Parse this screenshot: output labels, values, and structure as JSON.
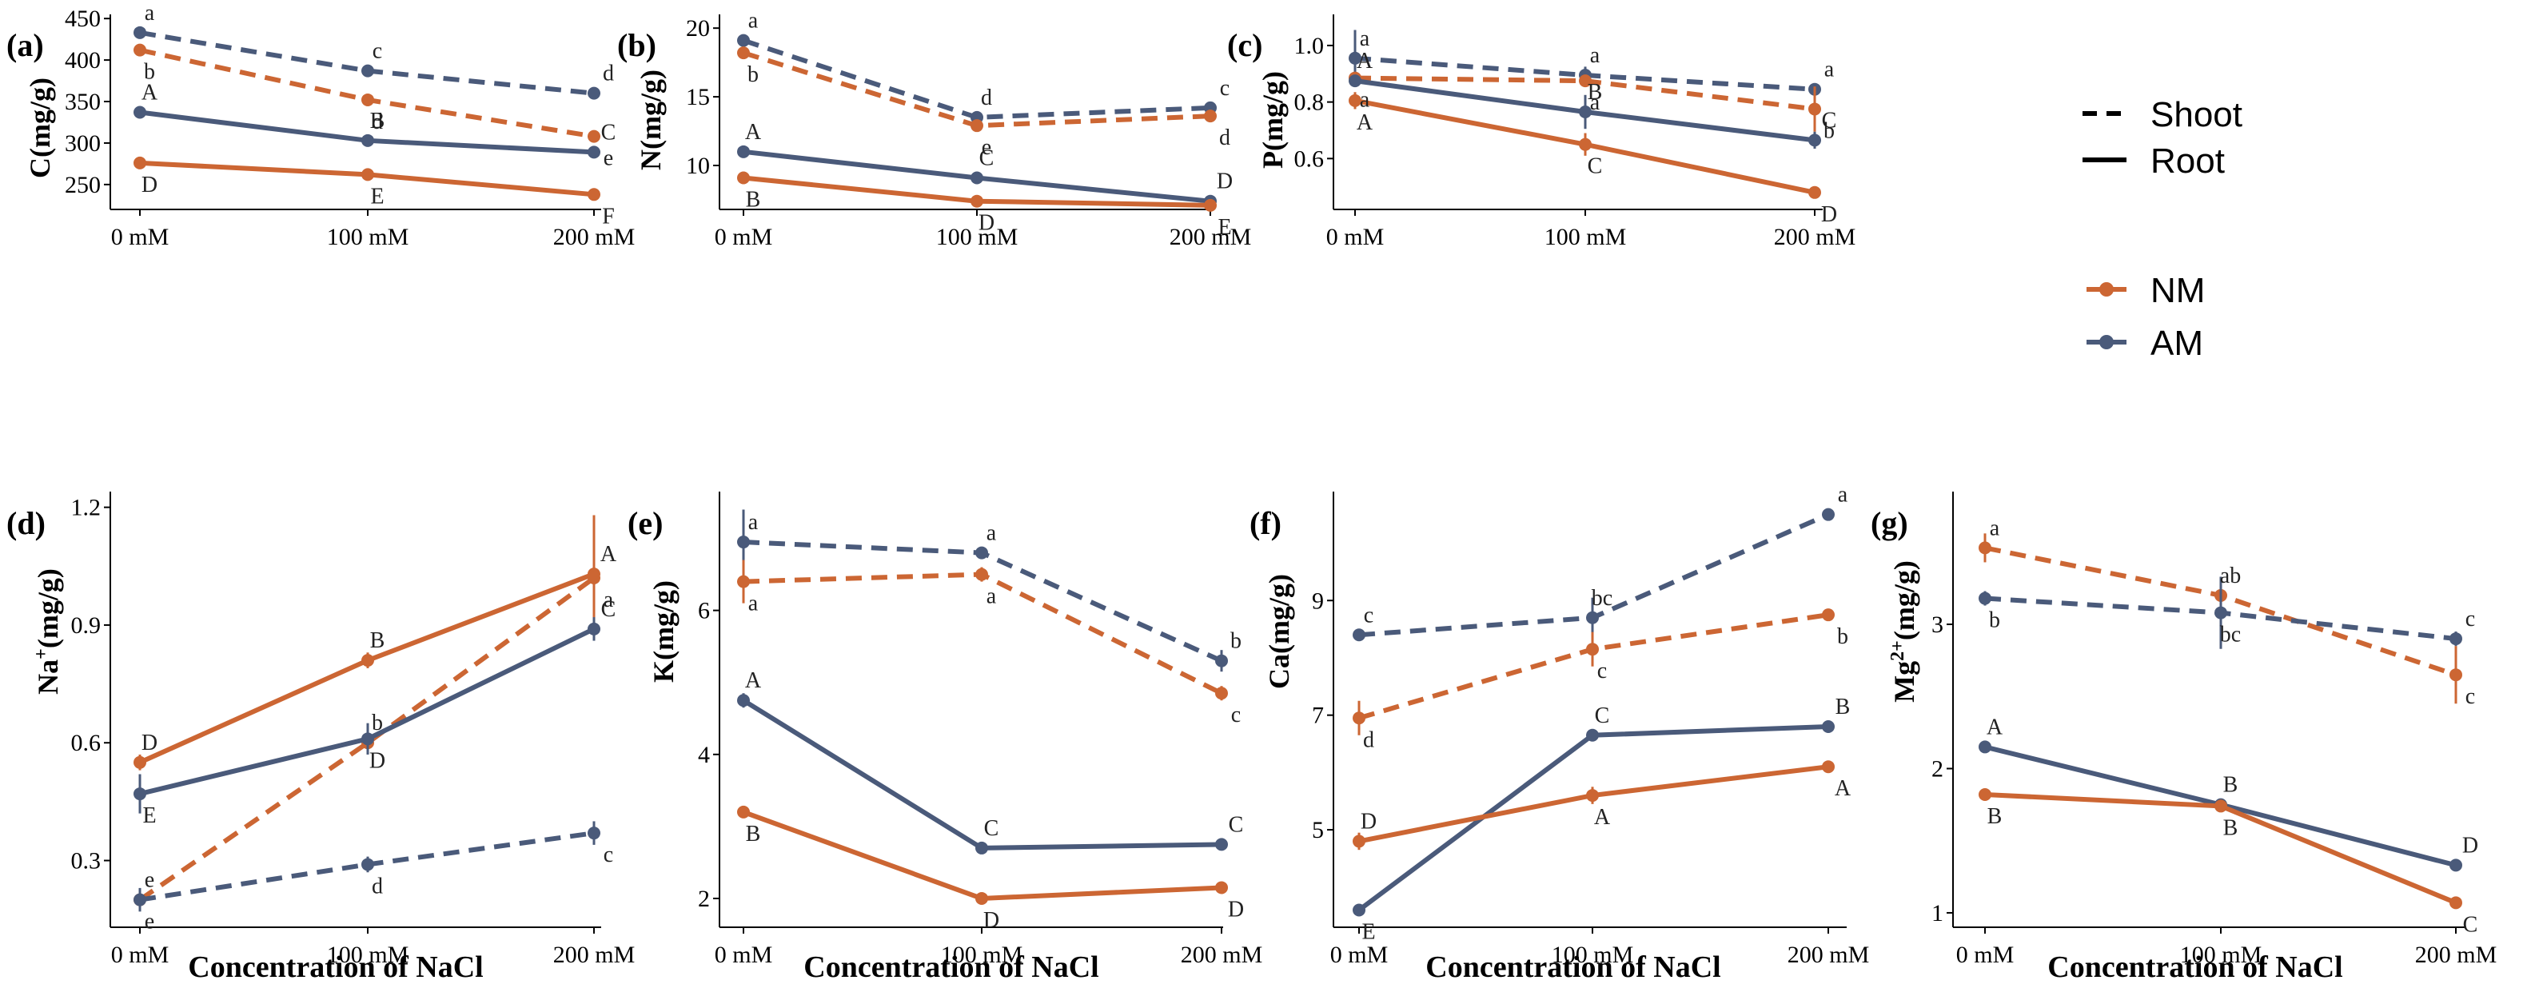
{
  "legend": {
    "line_types": [
      {
        "label": "Shoot",
        "style": "dashed"
      },
      {
        "label": "Root",
        "style": "solid"
      }
    ],
    "groups": [
      {
        "label": "NM",
        "color": "#cc6633"
      },
      {
        "label": "AM",
        "color": "#4a5a7a"
      }
    ]
  },
  "x_title": "Concentration of NaCl",
  "chart_data": [
    {
      "type": "line",
      "panel": "(a)",
      "ylabel": "C(mg/g)",
      "ylabel_sup": "",
      "ylabel_suffix": "",
      "categories": [
        "0 mM",
        "100 mM",
        "200 mM"
      ],
      "ylim": [
        220,
        455
      ],
      "yticks": [
        250,
        300,
        350,
        400,
        450
      ],
      "ytick_labels": [
        "250",
        "300",
        "350",
        "400",
        "450"
      ],
      "series": [
        {
          "name": "AM Shoot",
          "group": "AM",
          "part": "Shoot",
          "values": [
            433,
            387,
            360
          ],
          "errors": [
            4,
            3,
            5
          ],
          "letters": [
            "a",
            "c",
            "d"
          ]
        },
        {
          "name": "NM Shoot",
          "group": "NM",
          "part": "Shoot",
          "values": [
            412,
            352,
            308
          ],
          "errors": [
            4,
            4,
            3
          ],
          "letters": [
            "b",
            "d",
            "e"
          ]
        },
        {
          "name": "AM Root",
          "group": "AM",
          "part": "Root",
          "values": [
            337,
            303,
            289
          ],
          "errors": [
            2,
            2,
            3
          ],
          "letters": [
            "A",
            "B",
            "C"
          ]
        },
        {
          "name": "NM Root",
          "group": "NM",
          "part": "Root",
          "values": [
            276,
            262,
            238
          ],
          "errors": [
            2,
            3,
            2
          ],
          "letters": [
            "D",
            "E",
            "F"
          ]
        }
      ]
    },
    {
      "type": "line",
      "panel": "(b)",
      "ylabel": "N(mg/g)",
      "ylabel_sup": "",
      "ylabel_suffix": "",
      "categories": [
        "0 mM",
        "100 mM",
        "200 mM"
      ],
      "ylim": [
        6.8,
        21
      ],
      "yticks": [
        10,
        15,
        20
      ],
      "ytick_labels": [
        "10",
        "15",
        "20"
      ],
      "series": [
        {
          "name": "AM Shoot",
          "group": "AM",
          "part": "Shoot",
          "values": [
            19.1,
            13.5,
            14.2
          ],
          "errors": [
            0.3,
            0.3,
            0.2
          ],
          "letters": [
            "a",
            "d",
            "c"
          ]
        },
        {
          "name": "NM Shoot",
          "group": "NM",
          "part": "Shoot",
          "values": [
            18.2,
            12.9,
            13.6
          ],
          "errors": [
            0.3,
            0.2,
            0.2
          ],
          "letters": [
            "b",
            "e",
            "d"
          ]
        },
        {
          "name": "AM Root",
          "group": "AM",
          "part": "Root",
          "values": [
            11.0,
            9.1,
            7.4
          ],
          "errors": [
            0.2,
            0.2,
            0.2
          ],
          "letters": [
            "A",
            "C",
            "D"
          ]
        },
        {
          "name": "NM Root",
          "group": "NM",
          "part": "Root",
          "values": [
            9.1,
            7.4,
            7.1
          ],
          "errors": [
            0.2,
            0.2,
            0.2
          ],
          "letters": [
            "B",
            "D",
            "E"
          ]
        }
      ]
    },
    {
      "type": "line",
      "panel": "(c)",
      "ylabel": "P(mg/g)",
      "ylabel_sup": "",
      "ylabel_suffix": "",
      "categories": [
        "0 mM",
        "100 mM",
        "200 mM"
      ],
      "ylim": [
        0.42,
        1.11
      ],
      "yticks": [
        0.6,
        0.8,
        1.0
      ],
      "ytick_labels": [
        "0.6",
        "0.8",
        "1.0"
      ],
      "series": [
        {
          "name": "AM Shoot",
          "group": "AM",
          "part": "Shoot",
          "values": [
            0.955,
            0.895,
            0.845
          ],
          "errors": [
            0.1,
            0.03,
            0.02
          ],
          "letters": [
            "a",
            "a",
            "a"
          ]
        },
        {
          "name": "NM Shoot",
          "group": "NM",
          "part": "Shoot",
          "values": [
            0.885,
            0.875,
            0.775
          ],
          "errors": [
            0.02,
            0.02,
            0.08
          ],
          "letters": [
            "a",
            "a",
            "b"
          ]
        },
        {
          "name": "AM Root",
          "group": "AM",
          "part": "Root",
          "values": [
            0.875,
            0.765,
            0.665
          ],
          "errors": [
            0.02,
            0.06,
            0.03
          ],
          "letters": [
            "A",
            "B",
            "C"
          ]
        },
        {
          "name": "NM Root",
          "group": "NM",
          "part": "Root",
          "values": [
            0.805,
            0.65,
            0.48
          ],
          "errors": [
            0.03,
            0.04,
            0.02
          ],
          "letters": [
            "A",
            "C",
            "D"
          ]
        }
      ]
    },
    {
      "type": "line",
      "panel": "(d)",
      "ylabel": "Na",
      "ylabel_sup": "+",
      "ylabel_suffix": "(mg/g)",
      "categories": [
        "0 mM",
        "100 mM",
        "200 mM"
      ],
      "ylim": [
        0.13,
        1.24
      ],
      "yticks": [
        0.3,
        0.6,
        0.9,
        1.2
      ],
      "ytick_labels": [
        "0.3",
        "0.6",
        "0.9",
        "1.2"
      ],
      "series": [
        {
          "name": "NM Root",
          "group": "NM",
          "part": "Root",
          "values": [
            0.55,
            0.81,
            1.03
          ],
          "errors": [
            0.02,
            0.02,
            0.15
          ],
          "letters": [
            "D",
            "B",
            "A"
          ]
        },
        {
          "name": "NM Shoot",
          "group": "NM",
          "part": "Shoot",
          "values": [
            0.2,
            0.6,
            1.02
          ],
          "errors": [
            0.01,
            0.02,
            0.03
          ],
          "letters": [
            "e",
            "b",
            "a"
          ]
        },
        {
          "name": "AM Root",
          "group": "AM",
          "part": "Root",
          "values": [
            0.47,
            0.61,
            0.89
          ],
          "errors": [
            0.05,
            0.04,
            0.03
          ],
          "letters": [
            "E",
            "D",
            "C"
          ]
        },
        {
          "name": "AM Shoot",
          "group": "AM",
          "part": "Shoot",
          "values": [
            0.2,
            0.29,
            0.37
          ],
          "errors": [
            0.03,
            0.02,
            0.03
          ],
          "letters": [
            "e",
            "d",
            "c"
          ]
        }
      ]
    },
    {
      "type": "line",
      "panel": "(e)",
      "ylabel": "K(mg/g)",
      "ylabel_sup": "",
      "ylabel_suffix": "",
      "categories": [
        "0 mM",
        "100 mM",
        "200 mM"
      ],
      "ylim": [
        1.6,
        7.65
      ],
      "yticks": [
        2,
        4,
        6
      ],
      "ytick_labels": [
        "2",
        "4",
        "6"
      ],
      "series": [
        {
          "name": "AM Shoot",
          "group": "AM",
          "part": "Shoot",
          "values": [
            6.95,
            6.8,
            5.3
          ],
          "errors": [
            0.45,
            0.05,
            0.15
          ],
          "letters": [
            "a",
            "a",
            "b"
          ]
        },
        {
          "name": "NM Shoot",
          "group": "NM",
          "part": "Shoot",
          "values": [
            6.4,
            6.5,
            4.85
          ],
          "errors": [
            0.3,
            0.1,
            0.1
          ],
          "letters": [
            "a",
            "a",
            "c"
          ]
        },
        {
          "name": "AM Root",
          "group": "AM",
          "part": "Root",
          "values": [
            4.75,
            2.7,
            2.75
          ],
          "errors": [
            0.1,
            0.05,
            0.05
          ],
          "letters": [
            "A",
            "C",
            "C"
          ]
        },
        {
          "name": "NM Root",
          "group": "NM",
          "part": "Root",
          "values": [
            3.2,
            2.0,
            2.15
          ],
          "errors": [
            0.05,
            0.05,
            0.05
          ],
          "letters": [
            "B",
            "D",
            "D"
          ]
        }
      ]
    },
    {
      "type": "line",
      "panel": "(f)",
      "ylabel": "Ca(mg/g)",
      "ylabel_sup": "",
      "ylabel_suffix": "",
      "categories": [
        "0 mM",
        "100 mM",
        "200 mM"
      ],
      "ylim": [
        3.3,
        10.9
      ],
      "yticks": [
        5,
        7,
        9
      ],
      "ytick_labels": [
        "5",
        "7",
        "9"
      ],
      "series": [
        {
          "name": "AM Shoot",
          "group": "AM",
          "part": "Shoot",
          "values": [
            8.4,
            8.7,
            10.5
          ],
          "errors": [
            0.05,
            0.35,
            0.05
          ],
          "letters": [
            "c",
            "bc",
            "a"
          ]
        },
        {
          "name": "NM Shoot",
          "group": "NM",
          "part": "Shoot",
          "values": [
            6.95,
            8.15,
            8.75
          ],
          "errors": [
            0.3,
            0.3,
            0.05
          ],
          "letters": [
            "d",
            "c",
            "b"
          ]
        },
        {
          "name": "AM Root",
          "group": "AM",
          "part": "Root",
          "values": [
            3.6,
            6.65,
            6.8
          ],
          "errors": [
            0.05,
            0.05,
            0.05
          ],
          "letters": [
            "E",
            "C",
            "B"
          ]
        },
        {
          "name": "NM Root",
          "group": "NM",
          "part": "Root",
          "values": [
            4.8,
            5.6,
            6.1
          ],
          "errors": [
            0.15,
            0.15,
            0.05
          ],
          "letters": [
            "D",
            "A",
            "A"
          ]
        }
      ]
    },
    {
      "type": "line",
      "panel": "(g)",
      "ylabel": "Mg",
      "ylabel_sup": "2+",
      "ylabel_suffix": "(mg/g)",
      "categories": [
        "0 mM",
        "100 mM",
        "200 mM"
      ],
      "ylim": [
        0.9,
        3.92
      ],
      "yticks": [
        1,
        2,
        3
      ],
      "ytick_labels": [
        "1",
        "2",
        "3"
      ],
      "series": [
        {
          "name": "NM Shoot",
          "group": "NM",
          "part": "Shoot",
          "values": [
            3.53,
            3.2,
            2.65
          ],
          "errors": [
            0.1,
            0.05,
            0.2
          ],
          "letters": [
            "a",
            "ab",
            "c"
          ]
        },
        {
          "name": "AM Shoot",
          "group": "AM",
          "part": "Shoot",
          "values": [
            3.18,
            3.08,
            2.9
          ],
          "errors": [
            0.05,
            0.25,
            0.05
          ],
          "letters": [
            "b",
            "bc",
            "c"
          ]
        },
        {
          "name": "AM Root",
          "group": "AM",
          "part": "Root",
          "values": [
            2.15,
            1.75,
            1.33
          ],
          "errors": [
            0.03,
            0.03,
            0.03
          ],
          "letters": [
            "A",
            "B",
            "D"
          ]
        },
        {
          "name": "NM Root",
          "group": "NM",
          "part": "Root",
          "values": [
            1.82,
            1.74,
            1.07
          ],
          "errors": [
            0.03,
            0.03,
            0.03
          ],
          "letters": [
            "B",
            "B",
            "C"
          ]
        }
      ]
    }
  ]
}
